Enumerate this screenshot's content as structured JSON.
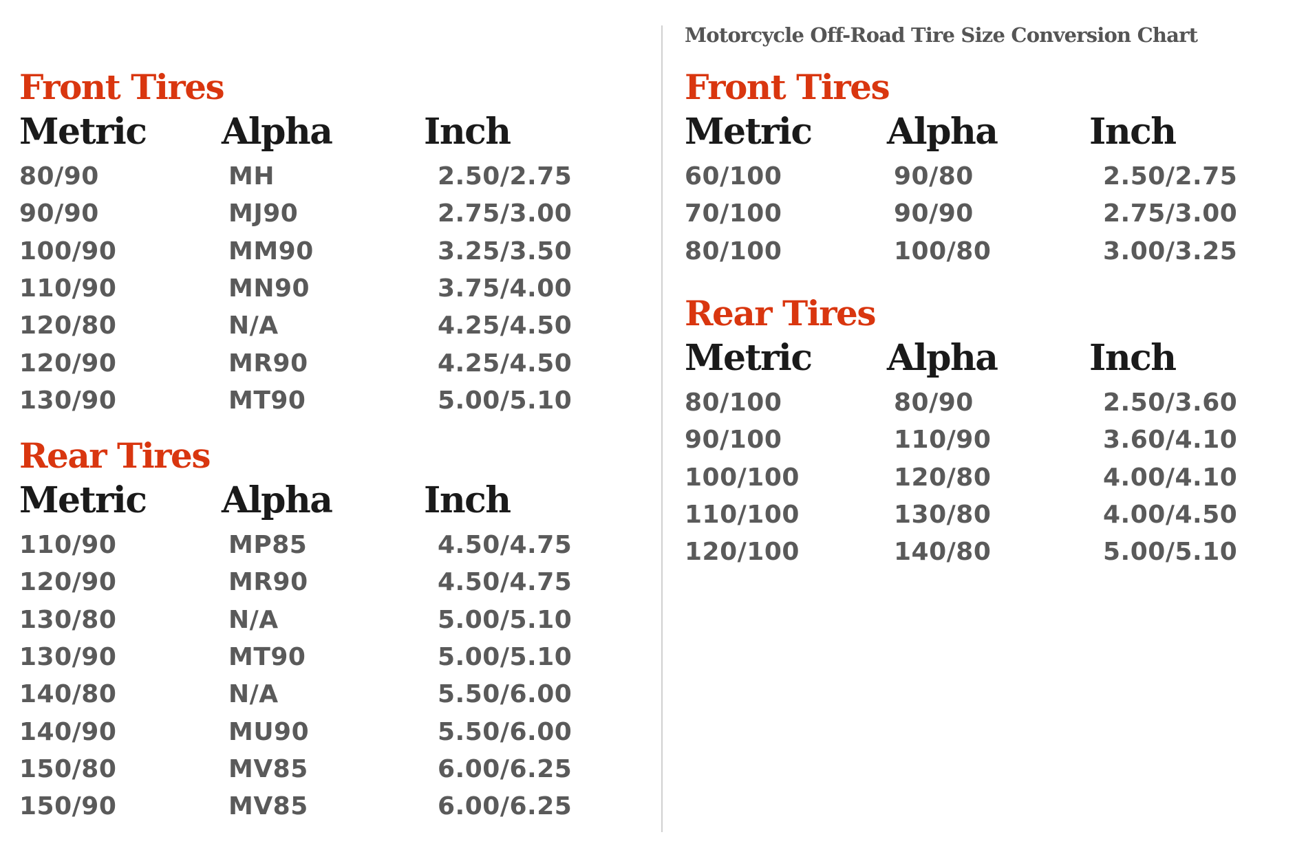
{
  "chart_title": "Motorcycle Off-Road Tire Size Conversion Chart",
  "colors": {
    "section_title": "#d9360f",
    "header": "#1a1a1a",
    "cell": "#5a5a5a",
    "divider": "#d0d0d0"
  },
  "columns": [
    "Metric",
    "Alpha",
    "Inch"
  ],
  "left": {
    "front": {
      "title": "Front Tires",
      "rows": [
        [
          "80/90",
          "MH",
          "2.50/2.75"
        ],
        [
          "90/90",
          "MJ90",
          "2.75/3.00"
        ],
        [
          "100/90",
          "MM90",
          "3.25/3.50"
        ],
        [
          "110/90",
          "MN90",
          "3.75/4.00"
        ],
        [
          "120/80",
          "N/A",
          "4.25/4.50"
        ],
        [
          "120/90",
          "MR90",
          "4.25/4.50"
        ],
        [
          "130/90",
          "MT90",
          "5.00/5.10"
        ]
      ]
    },
    "rear": {
      "title": "Rear Tires",
      "rows": [
        [
          "110/90",
          "MP85",
          "4.50/4.75"
        ],
        [
          "120/90",
          "MR90",
          "4.50/4.75"
        ],
        [
          "130/80",
          "N/A",
          "5.00/5.10"
        ],
        [
          "130/90",
          "MT90",
          "5.00/5.10"
        ],
        [
          "140/80",
          "N/A",
          "5.50/6.00"
        ],
        [
          "140/90",
          "MU90",
          "5.50/6.00"
        ],
        [
          "150/80",
          "MV85",
          "6.00/6.25"
        ],
        [
          "150/90",
          "MV85",
          "6.00/6.25"
        ]
      ]
    }
  },
  "right": {
    "front": {
      "title": "Front Tires",
      "rows": [
        [
          "60/100",
          "90/80",
          "2.50/2.75"
        ],
        [
          "70/100",
          "90/90",
          "2.75/3.00"
        ],
        [
          "80/100",
          "100/80",
          "3.00/3.25"
        ]
      ]
    },
    "rear": {
      "title": "Rear Tires",
      "rows": [
        [
          "80/100",
          "80/90",
          "2.50/3.60"
        ],
        [
          "90/100",
          "110/90",
          "3.60/4.10"
        ],
        [
          "100/100",
          "120/80",
          "4.00/4.10"
        ],
        [
          "110/100",
          "130/80",
          "4.00/4.50"
        ],
        [
          "120/100",
          "140/80",
          "5.00/5.10"
        ]
      ]
    }
  }
}
